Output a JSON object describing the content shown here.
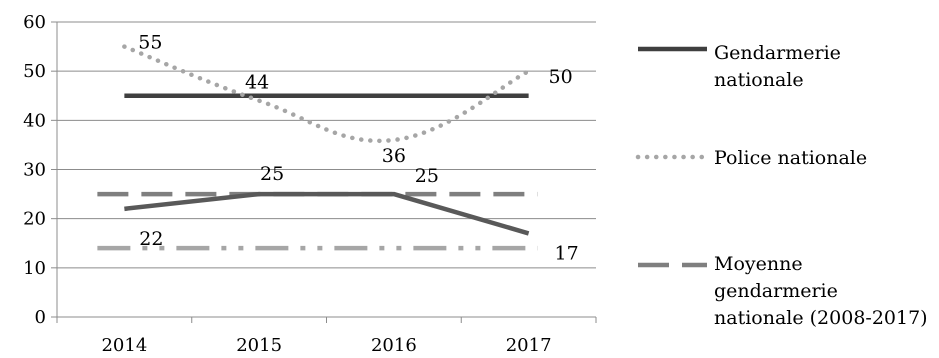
{
  "chart_data": {
    "type": "line",
    "categories": [
      "2014",
      "2015",
      "2016",
      "2017"
    ],
    "ylim": [
      0,
      60
    ],
    "yticks": [
      0,
      10,
      20,
      30,
      40,
      50,
      60
    ],
    "grid": true,
    "legend_position": "right",
    "series": [
      {
        "name": "Gendarmerie nationale",
        "key": "gendarmerie-45",
        "values": [
          45,
          45,
          45,
          45
        ],
        "style": "solid",
        "color": "#3f3f3f",
        "in_legend": true
      },
      {
        "name": "Police nationale",
        "key": "police",
        "values": [
          55,
          44,
          36,
          50
        ],
        "style": "dotted",
        "color": "#a6a6a6",
        "in_legend": true,
        "labels": [
          "55",
          "44",
          "36",
          "50"
        ]
      },
      {
        "name": "Moyenne gendarmerie nationale (2008-2017)",
        "key": "moyenne",
        "values": [
          25,
          25,
          25,
          25
        ],
        "style": "dashed",
        "color": "#7f7f7f",
        "in_legend": true
      },
      {
        "name": "",
        "key": "gendarmerie-trend",
        "values": [
          22,
          25,
          25,
          17
        ],
        "style": "solid",
        "color": "#595959",
        "in_legend": false,
        "labels": [
          "22",
          "25",
          "25",
          "17"
        ]
      },
      {
        "name": "",
        "key": "dashdot",
        "values": [
          14,
          14,
          14,
          14
        ],
        "style": "dashdot",
        "color": "#a6a6a6",
        "in_legend": false
      }
    ],
    "legend": [
      {
        "lines": [
          "Gendarmerie",
          "nationale"
        ]
      },
      {
        "lines": [
          "Police nationale"
        ]
      },
      {
        "lines": [
          "Moyenne",
          "gendarmerie",
          "nationale (2008-2017)"
        ]
      }
    ]
  }
}
